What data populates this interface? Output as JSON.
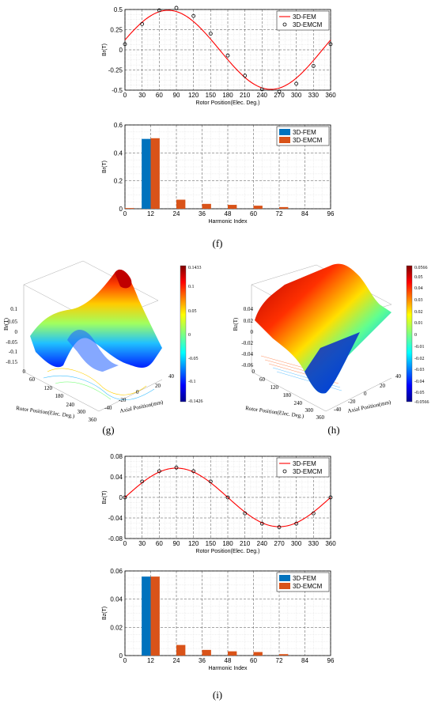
{
  "panel_labels": {
    "f": "(f)",
    "g": "(g)",
    "h": "(h)",
    "i": "(i)"
  },
  "colors": {
    "fem_line": "#ff0000",
    "fem_bar": "#0072bd",
    "emcm_bar": "#d95319",
    "marker": "#000000"
  },
  "chart_data": [
    {
      "id": "f-top",
      "type": "line",
      "xlabel": "Rotor Position(Elec. Deg.)",
      "ylabel": "Br(T)",
      "xlim": [
        0,
        360
      ],
      "ylim": [
        -0.5,
        0.5
      ],
      "xticks": [
        0,
        30,
        60,
        90,
        120,
        150,
        180,
        210,
        240,
        270,
        300,
        330,
        360
      ],
      "yticks": [
        -0.5,
        -0.25,
        0,
        0.25,
        0.5
      ],
      "ytick_labels": [
        "-0.5",
        "-0.25",
        "0",
        "0.25",
        "0.5"
      ],
      "grid": true,
      "legend": "top-right",
      "series": [
        {
          "name": "3D-FEM",
          "style": "line",
          "amplitude": 0.5,
          "offset_deg": 0,
          "x_start": 0,
          "x_end": 360,
          "fn": "sin"
        },
        {
          "name": "3D-EMCM",
          "style": "markers",
          "x": [
            0,
            30,
            60,
            90,
            120,
            150,
            180,
            210,
            240,
            270,
            300,
            330,
            360
          ],
          "y": [
            0.07,
            0.32,
            0.49,
            0.52,
            0.42,
            0.2,
            -0.07,
            -0.32,
            -0.49,
            -0.52,
            -0.42,
            -0.2,
            0.07
          ]
        }
      ]
    },
    {
      "id": "f-bottom",
      "type": "bar",
      "xlabel": "Harmonic Index",
      "ylabel": "Br(T)",
      "xlim": [
        0,
        96
      ],
      "ylim": [
        0,
        0.6
      ],
      "xticks": [
        0,
        12,
        24,
        36,
        48,
        60,
        72,
        84,
        96
      ],
      "yticks": [
        0,
        0.2,
        0.4,
        0.6
      ],
      "ytick_labels": [
        "0",
        "0.2",
        "0.4",
        "0.6"
      ],
      "grid": true,
      "legend": "top-right",
      "categories": [
        0,
        12,
        24,
        36,
        48,
        60,
        72
      ],
      "series": [
        {
          "name": "3D-FEM",
          "values": [
            0,
            0.5,
            0,
            0,
            0,
            0,
            0
          ]
        },
        {
          "name": "3D-EMCM",
          "values": [
            0.005,
            0.505,
            0.065,
            0.035,
            0.028,
            0.022,
            0.012
          ]
        }
      ]
    },
    {
      "id": "g",
      "type": "surface3d",
      "zlabel": "Br(T)",
      "xlabel": "Rotor Position(Elec. Deg.)",
      "ylabel": "Axial Position(mm)",
      "zticks": [
        "0.1",
        "0.05",
        "0",
        "-0.05",
        "-0.1",
        "-0.15"
      ],
      "xticks": [
        "0",
        "60",
        "120",
        "180",
        "240",
        "300",
        "360"
      ],
      "yticks": [
        "40",
        "20",
        "0",
        "-20",
        "-40"
      ],
      "colorbar": {
        "max": "0.1433",
        "min": "-0.1426",
        "ticks": [
          "0.1",
          "0.05",
          "0",
          "-0.05",
          "-0.1"
        ]
      }
    },
    {
      "id": "h",
      "type": "surface3d",
      "zlabel": "Bz(T)",
      "xlabel": "Rotor Position(Elec. Deg.)",
      "ylabel": "Axial Position(mm)",
      "zticks": [
        "0.04",
        "0.02",
        "0",
        "-0.02",
        "-0.04",
        "-0.06"
      ],
      "xticks": [
        "0",
        "60",
        "120",
        "180",
        "240",
        "300",
        "360"
      ],
      "yticks": [
        "40",
        "20",
        "0",
        "-20",
        "-40"
      ],
      "colorbar": {
        "max": "0.0566",
        "min": "-0.0566",
        "ticks": [
          "0.05",
          "0.04",
          "0.03",
          "0.02",
          "0.01",
          "0",
          "-0.01",
          "-0.02",
          "-0.03",
          "-0.04",
          "-0.05"
        ]
      }
    },
    {
      "id": "i-top",
      "type": "line",
      "xlabel": "Rotor Position(Elec. Deg.)",
      "ylabel": "Bz(T)",
      "xlim": [
        0,
        360
      ],
      "ylim": [
        -0.08,
        0.08
      ],
      "xticks": [
        0,
        30,
        60,
        90,
        120,
        150,
        180,
        210,
        240,
        270,
        300,
        330,
        360
      ],
      "yticks": [
        -0.08,
        -0.04,
        0,
        0.04,
        0.08
      ],
      "ytick_labels": [
        "-0.08",
        "-0.04",
        "0",
        "0.04",
        "0.08"
      ],
      "grid": true,
      "legend": "top-right",
      "series": [
        {
          "name": "3D-FEM",
          "style": "line",
          "amplitude": 0.057,
          "offset_deg": 0,
          "x_start": 0,
          "x_end": 360,
          "fn": "sinz"
        },
        {
          "name": "3D-EMCM",
          "style": "markers",
          "x": [
            0,
            30,
            60,
            90,
            120,
            150,
            180,
            210,
            240,
            270,
            300,
            330,
            360
          ],
          "y": [
            0,
            0.031,
            0.051,
            0.058,
            0.051,
            0.031,
            0,
            -0.031,
            -0.051,
            -0.058,
            -0.051,
            -0.031,
            0
          ]
        }
      ]
    },
    {
      "id": "i-bottom",
      "type": "bar",
      "xlabel": "Harmonic Index",
      "ylabel": "Bz(T)",
      "xlim": [
        0,
        96
      ],
      "ylim": [
        0,
        0.06
      ],
      "xticks": [
        0,
        12,
        24,
        36,
        48,
        60,
        72,
        84,
        96
      ],
      "yticks": [
        0,
        0.02,
        0.04,
        0.06
      ],
      "ytick_labels": [
        "0",
        "0.02",
        "0.04",
        "0.06"
      ],
      "grid": true,
      "legend": "top-right",
      "categories": [
        0,
        12,
        24,
        36,
        48,
        60,
        72
      ],
      "series": [
        {
          "name": "3D-FEM",
          "values": [
            0,
            0.056,
            0,
            0,
            0,
            0,
            0
          ]
        },
        {
          "name": "3D-EMCM",
          "values": [
            0,
            0.056,
            0.0075,
            0.004,
            0.003,
            0.0025,
            0.001
          ]
        }
      ]
    }
  ]
}
